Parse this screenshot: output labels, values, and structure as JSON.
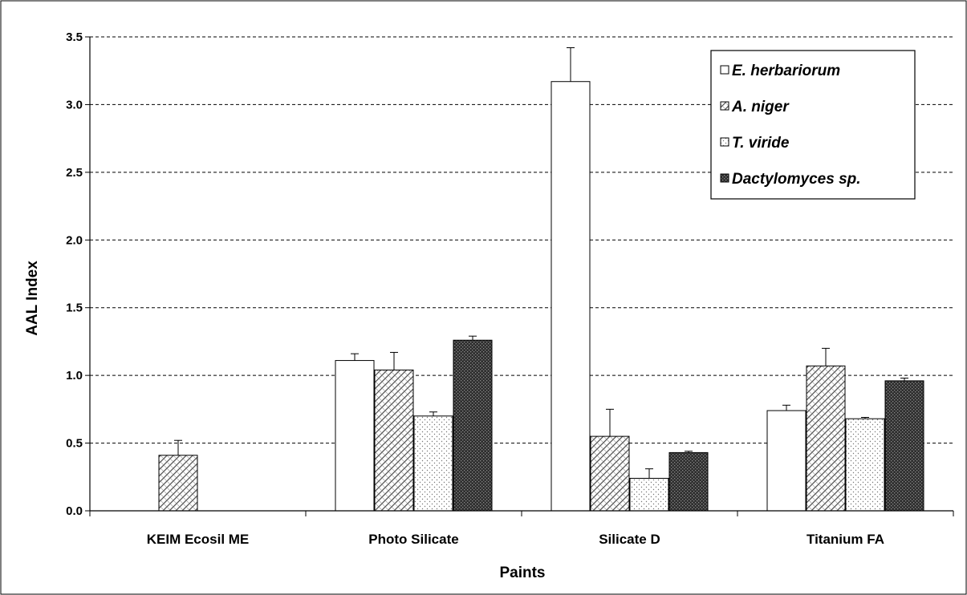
{
  "chart_data": {
    "type": "bar",
    "xlabel": "Paints",
    "ylabel": "AAL Index",
    "ylim": [
      0,
      3.5
    ],
    "yticks": [
      "0.0",
      "0.5",
      "1.0",
      "1.5",
      "2.0",
      "2.5",
      "3.0",
      "3.5"
    ],
    "grid": "horizontal dashed",
    "legend_position": "top-right",
    "categories": [
      "KEIM Ecosil ME",
      "Photo Silicate",
      "Silicate D",
      "Titanium FA"
    ],
    "series": [
      {
        "name": "E. herbariorum",
        "pattern": "white",
        "values": [
          0,
          1.11,
          3.17,
          0.74
        ],
        "errors": [
          0,
          0.05,
          0.25,
          0.04
        ]
      },
      {
        "name": "A. niger",
        "pattern": "diagonal-crosshatch",
        "values": [
          0.41,
          1.04,
          0.55,
          1.07
        ],
        "errors": [
          0.11,
          0.13,
          0.2,
          0.13
        ]
      },
      {
        "name": "T. viride",
        "pattern": "dots",
        "values": [
          0,
          0.7,
          0.24,
          0.68
        ],
        "errors": [
          0,
          0.03,
          0.07,
          0.01
        ]
      },
      {
        "name": "Dactylomyces sp.",
        "pattern": "dense-dark",
        "values": [
          0,
          1.26,
          0.43,
          0.96
        ],
        "errors": [
          0,
          0.03,
          0.01,
          0.02
        ]
      }
    ]
  }
}
